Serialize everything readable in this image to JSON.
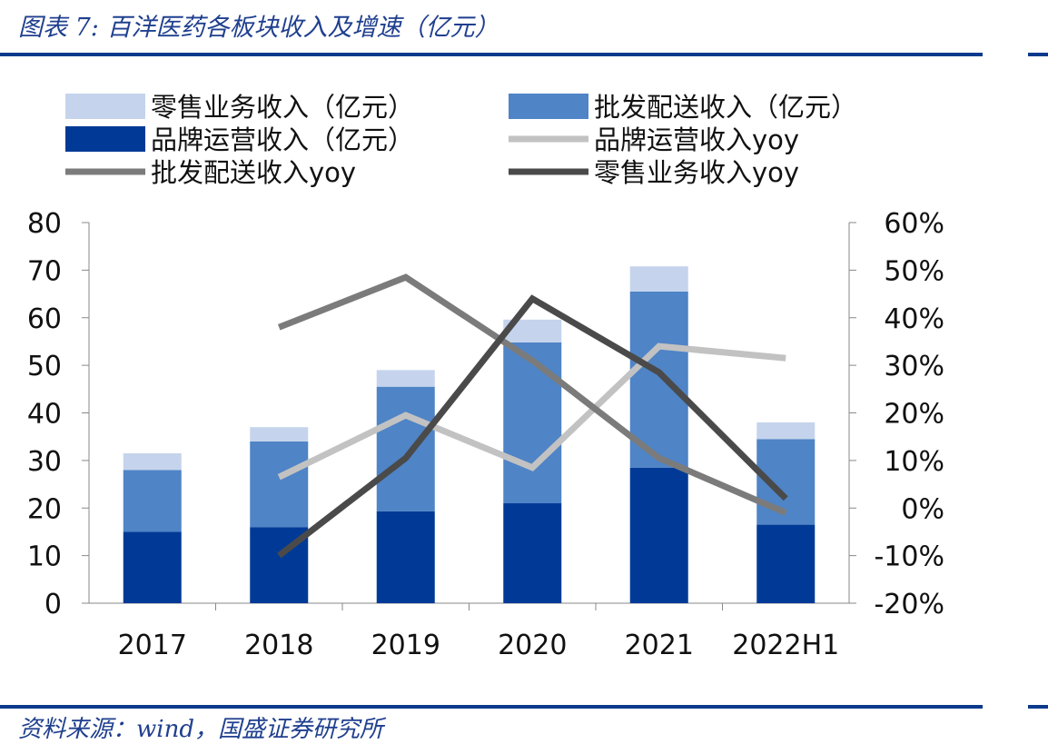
{
  "header": {
    "title": "图表 7:  百洋医药各板块收入及增速（亿元）"
  },
  "footer": {
    "source": "资料来源：wind，国盛证券研究所"
  },
  "colors": {
    "retail": "#c5d4ec",
    "wholesale": "#4f84c6",
    "brand": "#003a96",
    "brand_yoy": "#c2c2c2",
    "wholesale_yoy": "#7b7b7b",
    "retail_yoy": "#4a4a4a",
    "rule": "#0b3a8c"
  },
  "chart_data": {
    "type": "bar",
    "categories": [
      "2017",
      "2018",
      "2019",
      "2020",
      "2021",
      "2022H1"
    ],
    "ylim": [
      0,
      80
    ],
    "y2lim": [
      -0.2,
      0.6
    ],
    "yticks": [
      "0",
      "10",
      "20",
      "30",
      "40",
      "50",
      "60",
      "70",
      "80"
    ],
    "y2ticks": [
      "-20%",
      "-10%",
      "0%",
      "10%",
      "20%",
      "30%",
      "40%",
      "50%",
      "60%"
    ],
    "legend": {
      "retail": "零售业务收入（亿元）",
      "wholesale": "批发配送收入（亿元）",
      "brand": "品牌运营收入（亿元）",
      "brand_yoy": "品牌运营收入yoy",
      "wholesale_yoy": "批发配送收入yoy",
      "retail_yoy": "零售业务收入yoy"
    },
    "bars": [
      {
        "key": "brand",
        "values": [
          15.0,
          16.0,
          19.3,
          21.0,
          28.5,
          16.5
        ]
      },
      {
        "key": "wholesale",
        "values": [
          13.0,
          18.0,
          26.2,
          33.8,
          37.0,
          18.0
        ]
      },
      {
        "key": "retail",
        "values": [
          3.5,
          3.0,
          3.5,
          4.8,
          5.3,
          3.5
        ]
      }
    ],
    "lines": [
      {
        "key": "brand_yoy",
        "values": [
          null,
          0.065,
          0.195,
          0.085,
          0.34,
          0.315
        ]
      },
      {
        "key": "wholesale_yoy",
        "values": [
          null,
          0.38,
          0.485,
          0.31,
          0.105,
          -0.01
        ]
      },
      {
        "key": "retail_yoy",
        "values": [
          null,
          -0.1,
          0.105,
          0.44,
          0.285,
          0.02
        ]
      }
    ]
  }
}
